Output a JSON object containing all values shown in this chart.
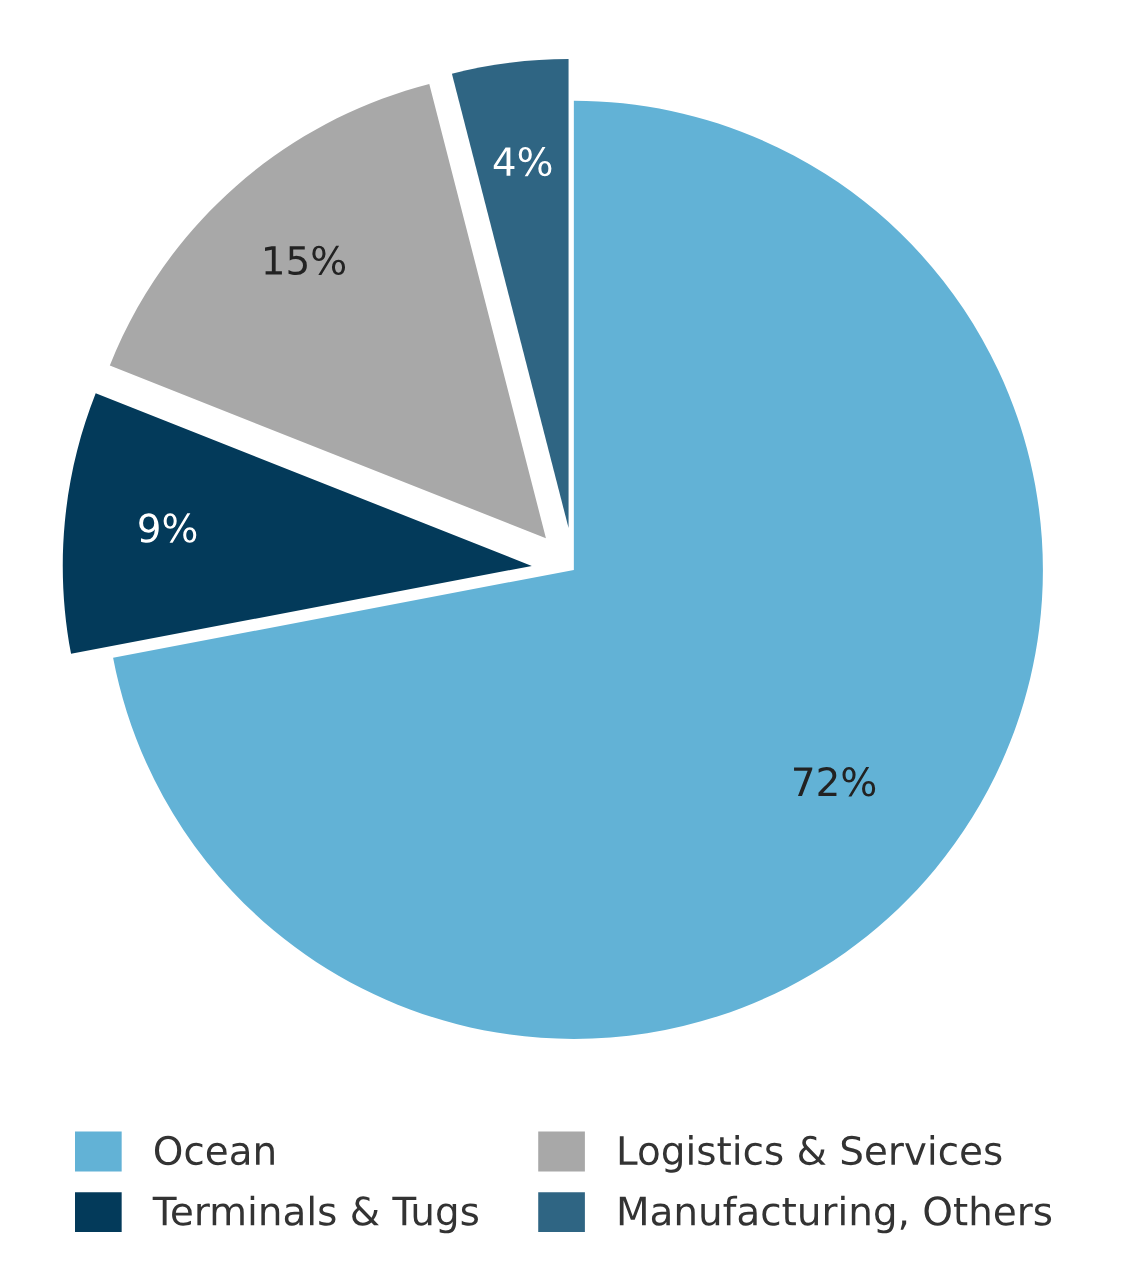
{
  "chart_data": {
    "type": "pie",
    "categories": [
      "Ocean",
      "Terminals & Tugs",
      "Logistics & Services",
      "Manufacturing, Others"
    ],
    "values": [
      72,
      9,
      15,
      4
    ],
    "colors": [
      "#62b2d6",
      "#033a5a",
      "#a8a8a8",
      "#2f6583"
    ],
    "value_labels": [
      "72%",
      "9%",
      "15%",
      "4%"
    ],
    "legend": "bottom"
  }
}
